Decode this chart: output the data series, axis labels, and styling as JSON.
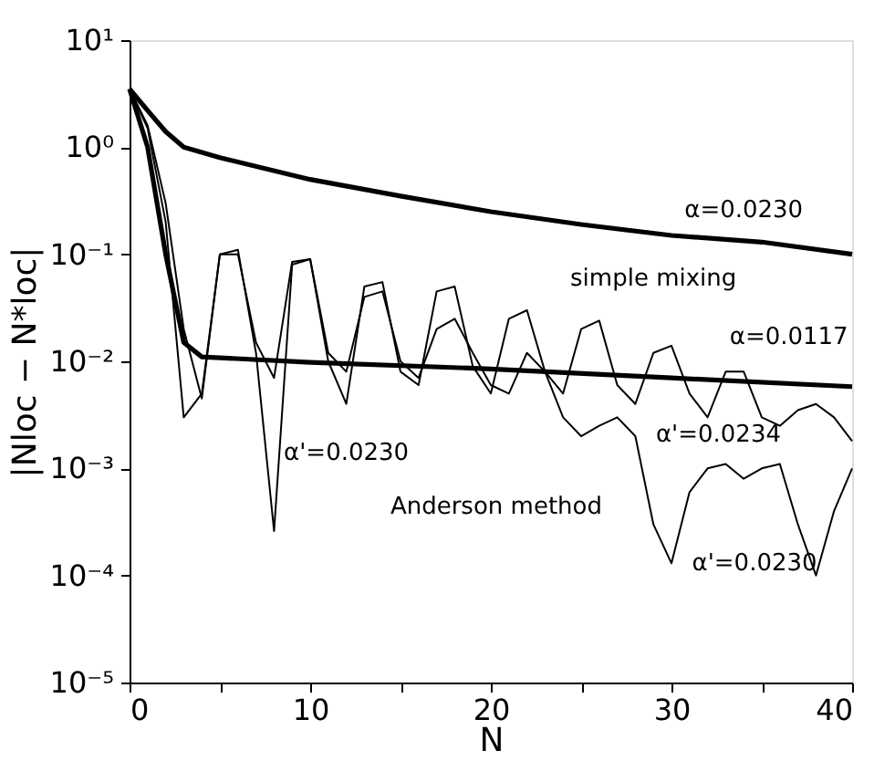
{
  "chart_data": {
    "type": "line",
    "xlabel": "N",
    "ylabel": "|Nloc − N*loc|",
    "log": "y",
    "xlim": [
      0,
      40
    ],
    "xticks": [
      0,
      {
        "value": 5,
        "label": null
      },
      10,
      {
        "value": 15,
        "label": null
      },
      20,
      {
        "value": 25,
        "label": null
      },
      30,
      {
        "value": 35,
        "label": null
      },
      40
    ],
    "ylim": [
      1e-05,
      10
    ],
    "yticks": [
      {
        "value": 1e-05,
        "label": "10⁻⁵"
      },
      {
        "value": 0.0001,
        "label": "10⁻⁴"
      },
      {
        "value": 0.001,
        "label": "10⁻³"
      },
      {
        "value": 0.01,
        "label": "10⁻²"
      },
      {
        "value": 0.1,
        "label": "10⁻¹"
      },
      {
        "value": 1,
        "label": "10⁰"
      },
      {
        "value": 10,
        "label": "10¹"
      }
    ],
    "grid": false,
    "marker": "none",
    "series": [
      {
        "color": "#000000",
        "x": [
          0,
          1,
          2,
          3,
          5,
          10,
          15,
          20,
          25,
          30,
          35,
          40
        ],
        "values": [
          3.5,
          2.2,
          1.4,
          1.0,
          0.8,
          0.5,
          0.35,
          0.25,
          0.19,
          0.15,
          0.13,
          0.1
        ]
      },
      {
        "color": "#000000",
        "x": [
          0,
          1,
          2,
          3,
          4,
          10,
          20,
          30,
          40
        ],
        "values": [
          3.5,
          1.0,
          0.1,
          0.015,
          0.011,
          0.0098,
          0.0085,
          0.007,
          0.0058
        ]
      },
      {
        "color": "#000000",
        "x": [
          0,
          1,
          2,
          3,
          4,
          5,
          6,
          7,
          8,
          9,
          10,
          11,
          12,
          13,
          14,
          15,
          16,
          17,
          18,
          19,
          20,
          21,
          22,
          23,
          24,
          25,
          26,
          27,
          28,
          29,
          30,
          31,
          32,
          33,
          34,
          35,
          36,
          37,
          38,
          39,
          40
        ],
        "values": [
          3.5,
          1.5,
          0.2,
          0.003,
          0.005,
          0.1,
          0.11,
          0.012,
          0.00026,
          0.08,
          0.09,
          0.01,
          0.004,
          0.05,
          0.055,
          0.008,
          0.006,
          0.045,
          0.05,
          0.009,
          0.005,
          0.025,
          0.03,
          0.008,
          0.003,
          0.002,
          0.0025,
          0.003,
          0.002,
          0.0003,
          0.00013,
          0.0006,
          0.001,
          0.0011,
          0.0008,
          0.001,
          0.0011,
          0.0003,
          0.0001,
          0.0004,
          0.001
        ]
      },
      {
        "color": "#000000",
        "x": [
          0,
          1,
          2,
          3,
          4,
          5,
          6,
          7,
          8,
          9,
          10,
          11,
          12,
          13,
          14,
          15,
          16,
          17,
          18,
          19,
          20,
          21,
          22,
          23,
          24,
          25,
          26,
          27,
          28,
          29,
          30,
          31,
          32,
          33,
          34,
          35,
          36,
          37,
          38,
          39,
          40
        ],
        "values": [
          3.5,
          1.6,
          0.3,
          0.02,
          0.0045,
          0.1,
          0.1,
          0.015,
          0.007,
          0.085,
          0.09,
          0.012,
          0.008,
          0.04,
          0.045,
          0.01,
          0.007,
          0.02,
          0.025,
          0.012,
          0.006,
          0.005,
          0.012,
          0.008,
          0.005,
          0.02,
          0.024,
          0.006,
          0.004,
          0.012,
          0.014,
          0.005,
          0.003,
          0.008,
          0.008,
          0.003,
          0.0025,
          0.0035,
          0.004,
          0.003,
          0.0018
        ]
      }
    ],
    "annotations": [
      "α=0.0230",
      "simple mixing",
      "α=0.0117",
      "α'=0.0230",
      "α'=0.0234",
      "Anderson method",
      "α'=0.0230"
    ]
  }
}
